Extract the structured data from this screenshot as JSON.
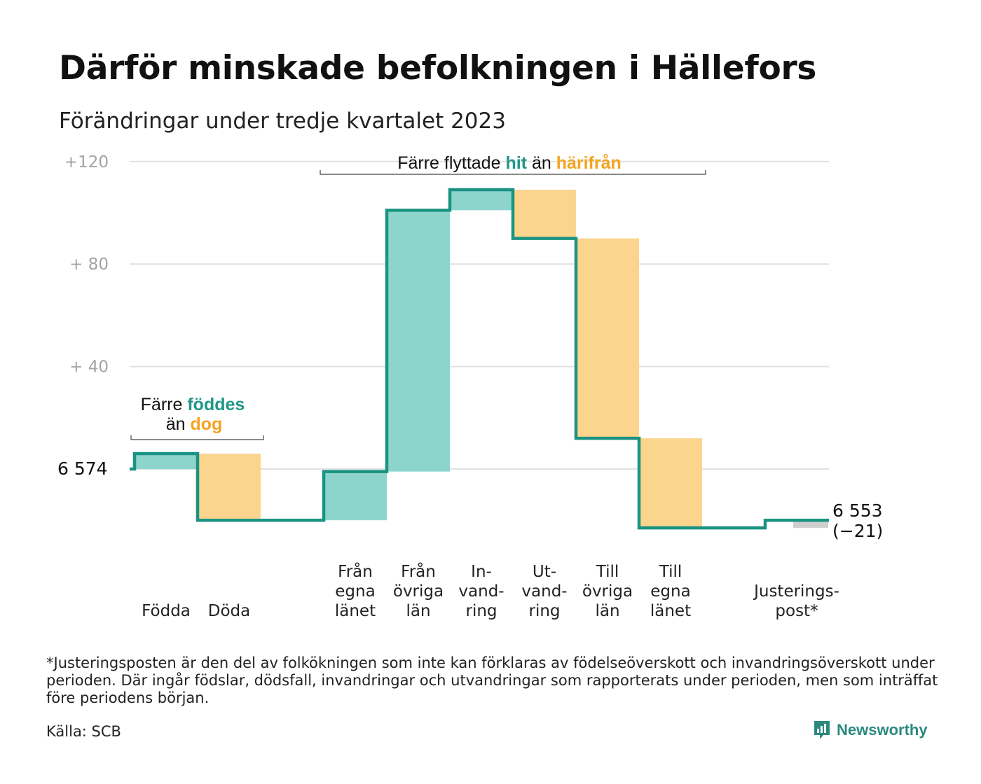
{
  "title": "Därför minskade befolkningen i Hällefors",
  "subtitle": "Förändringar under tredje kvartalet 2023",
  "footnote": "*Justeringsposten är den del av folkökningen som inte kan förklaras av födelseöverskott och invandringsöverskott under perioden. Där ingår födslar, dödsfall, invandringar och utvandringar som rapporterats under perioden, men som inträffat före periodens början.",
  "source": "Källa: SCB",
  "brand": "Newsworthy",
  "colors": {
    "increase": "#8dd5cc",
    "decrease": "#fbd58e",
    "adjustment": "#cfcfcf",
    "line": "#1a9383",
    "teal_text": "#1f9688",
    "orange_text": "#f3a41f"
  },
  "annotations": {
    "births_deaths": {
      "line1_prefix": "Färre",
      "line1_teal": "föddes",
      "line2_prefix": "än",
      "line2_orange": "dog"
    },
    "migration": {
      "prefix": "Färre flyttade",
      "teal": "hit",
      "middle": "än",
      "orange": "härifrån"
    }
  },
  "chart_data": {
    "type": "waterfall",
    "title": "Därför minskade befolkningen i Hällefors",
    "subtitle": "Förändringar under tredje kvartalet 2023",
    "start_value": 6574,
    "start_label": "6  574",
    "end_value": 6553,
    "end_label": [
      "6 553",
      "(−21)"
    ],
    "yticks": [
      {
        "value": 120,
        "label": "+120"
      },
      {
        "value": 80,
        "label": "+  80"
      },
      {
        "value": 40,
        "label": "+  40"
      }
    ],
    "ylim": [
      -32,
      124
    ],
    "grid": true,
    "steps": [
      {
        "key": "fodda",
        "label": [
          "Födda"
        ],
        "change": 6
      },
      {
        "key": "doda",
        "label": [
          "Döda"
        ],
        "change": -26
      },
      {
        "key": "gap",
        "label": [],
        "change": 0
      },
      {
        "key": "fran_egna_lanet",
        "label": [
          "Från",
          "egna",
          "länet"
        ],
        "change": 19
      },
      {
        "key": "fran_ovriga_lan",
        "label": [
          "Från",
          "övriga",
          "län"
        ],
        "change": 102
      },
      {
        "key": "invandring",
        "label": [
          "In-",
          "vand-",
          "ring"
        ],
        "change": 8
      },
      {
        "key": "utvandring",
        "label": [
          "Ut-",
          "vand-",
          "ring"
        ],
        "change": -19
      },
      {
        "key": "till_ovriga_lan",
        "label": [
          "Till",
          "övriga",
          "län"
        ],
        "change": -78
      },
      {
        "key": "till_egna_lanet",
        "label": [
          "Till",
          "egna",
          "länet"
        ],
        "change": -35
      },
      {
        "key": "gap2",
        "label": [],
        "change": 0
      },
      {
        "key": "justeringspost",
        "label": [
          "Justerings-",
          "post*"
        ],
        "change": 3,
        "kind": "adjustment"
      }
    ]
  }
}
